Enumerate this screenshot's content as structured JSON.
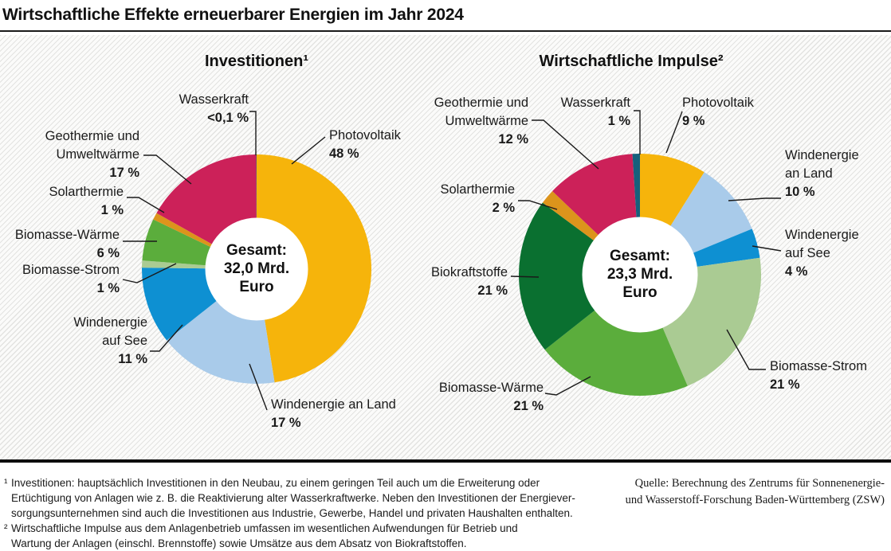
{
  "page": {
    "title": "Wirtschaftliche Effekte erneuerbarer Energien im Jahr 2024",
    "footnotes": [
      {
        "marker": "¹",
        "text": "Investitionen: hauptsächlich Investitionen in den Neubau, zu einem geringen Teil auch um die Erweiterung oder\nErtüchtigung von Anlagen wie z. B. die Reaktivierung alter Wasserkraftwerke. Neben den Investitionen der Energiever-\nsorgungsunternehmen sind auch die Investitionen aus Industrie, Gewerbe, Handel und privaten Haushalten enthalten."
      },
      {
        "marker": "²",
        "text": "Wirtschaftliche Impulse aus dem Anlagenbetrieb umfassen im wesentlichen Aufwendungen für Betrieb und\nWartung der Anlagen (einschl. Brennstoffe) sowie Umsätze aus dem Absatz von Biokraftstoffen."
      }
    ],
    "source": "Quelle: Berechnung des Zentrums für Sonnenenergie-\nund Wasserstoff-Forschung Baden-Württemberg (ZSW)"
  },
  "colors": {
    "photovoltaik": "#F6B40B",
    "windenergie_an_land": "#A9CBEA",
    "windenergie_auf_see": "#0E90D2",
    "biomasse_strom": "#AACB93",
    "biomasse_waerme": "#5BAD3C",
    "biokraftstoffe": "#0A7030",
    "solarthermie": "#DC941C",
    "geothermie": "#CC2159",
    "wasserkraft": "#16607C"
  },
  "chart_data": [
    {
      "type": "pie",
      "subtype": "donut",
      "title": "Investitionen¹",
      "center_label": "Gesamt:\n32,0 Mrd.\nEuro",
      "total": "32,0 Mrd. Euro",
      "unit": "%",
      "slices": [
        {
          "label": "Photovoltaik",
          "value": 48,
          "value_label": "48 %",
          "color": "#F6B40B"
        },
        {
          "label": "Windenergie an Land",
          "value": 17,
          "value_label": "17 %",
          "color": "#A9CBEA"
        },
        {
          "label": "Windenergie\nauf See",
          "value": 11,
          "value_label": "11 %",
          "color": "#0E90D2"
        },
        {
          "label": "Biomasse-Strom",
          "value": 1,
          "value_label": "1 %",
          "color": "#AACB93"
        },
        {
          "label": "Biomasse-Wärme",
          "value": 6,
          "value_label": "6 %",
          "color": "#5BAD3C"
        },
        {
          "label": "Solarthermie",
          "value": 1,
          "value_label": "1 %",
          "color": "#DC941C"
        },
        {
          "label": "Geothermie und\nUmweltwärme",
          "value": 17,
          "value_label": "17 %",
          "color": "#CC2159"
        },
        {
          "label": "Wasserkraft",
          "value": 0.05,
          "value_label": "<0,1 %",
          "color": "#16607C"
        }
      ]
    },
    {
      "type": "pie",
      "subtype": "donut",
      "title": "Wirtschaftliche Impulse²",
      "center_label": "Gesamt:\n23,3 Mrd.\nEuro",
      "total": "23,3 Mrd. Euro",
      "unit": "%",
      "slices": [
        {
          "label": "Photovoltaik",
          "value": 9,
          "value_label": "9 %",
          "color": "#F6B40B"
        },
        {
          "label": "Windenergie\nan Land",
          "value": 10,
          "value_label": "10 %",
          "color": "#A9CBEA"
        },
        {
          "label": "Windenergie\nauf See",
          "value": 4,
          "value_label": "4 %",
          "color": "#0E90D2"
        },
        {
          "label": "Biomasse-Strom",
          "value": 21,
          "value_label": "21 %",
          "color": "#AACB93"
        },
        {
          "label": "Biomasse-Wärme",
          "value": 21,
          "value_label": "21 %",
          "color": "#5BAD3C"
        },
        {
          "label": "Biokraftstoffe",
          "value": 21,
          "value_label": "21 %",
          "color": "#0A7030"
        },
        {
          "label": "Solarthermie",
          "value": 2,
          "value_label": "2 %",
          "color": "#DC941C"
        },
        {
          "label": "Geothermie und\nUmweltwärme",
          "value": 12,
          "value_label": "12 %",
          "color": "#CC2159"
        },
        {
          "label": "Wasserkraft",
          "value": 1,
          "value_label": "1 %",
          "color": "#16607C"
        }
      ]
    }
  ]
}
